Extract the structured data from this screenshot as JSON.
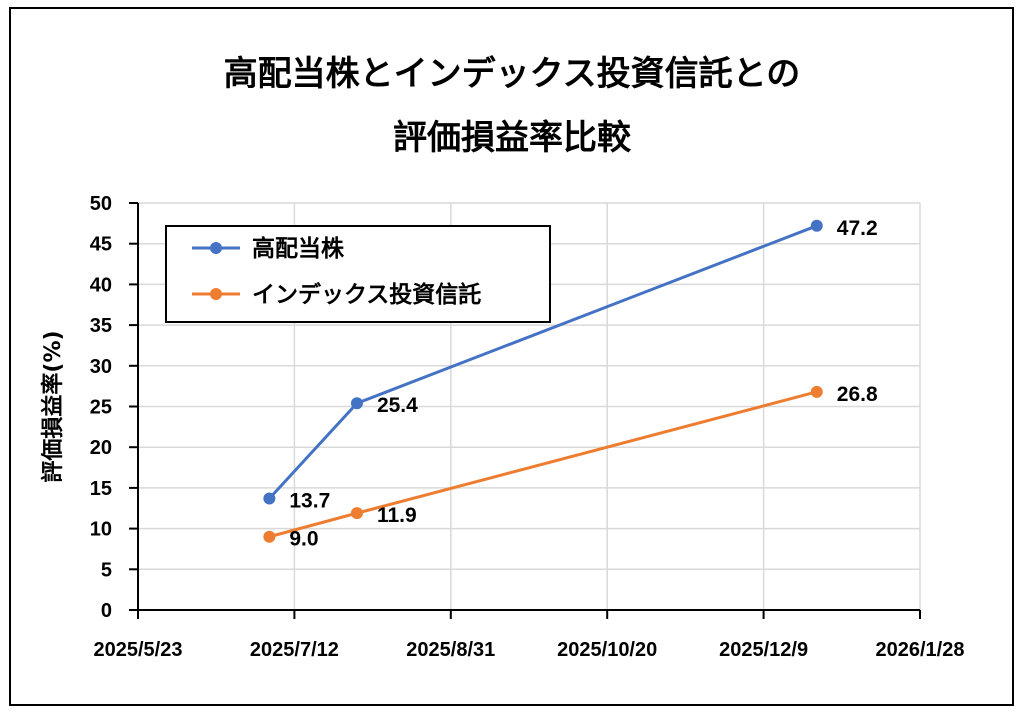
{
  "chart_data": {
    "type": "line",
    "title_lines": [
      "高配当株とインデックス投資信託との",
      "評価損益率比較"
    ],
    "ylabel": "評価損益率(%)",
    "xlabel": "",
    "ylim": [
      0,
      50
    ],
    "y_ticks": [
      "0",
      "5",
      "10",
      "15",
      "20",
      "25",
      "30",
      "35",
      "40",
      "45",
      "50"
    ],
    "xlim": [
      "2025-05-23",
      "2026-01-28"
    ],
    "x_ticks": [
      {
        "date": "2025-05-23",
        "label": "2025/5/23"
      },
      {
        "date": "2025-07-12",
        "label": "2025/7/12"
      },
      {
        "date": "2025-08-31",
        "label": "2025/8/31"
      },
      {
        "date": "2025-10-20",
        "label": "2025/10/20"
      },
      {
        "date": "2025-12-09",
        "label": "2025/12/9"
      },
      {
        "date": "2026-01-28",
        "label": "2026/1/28"
      }
    ],
    "grid": true,
    "legend_position": "top-left",
    "series": [
      {
        "name": "高配当株",
        "color": "#4472C4",
        "points": [
          {
            "x": "2025-07-04",
            "y": 13.7,
            "label": "13.7"
          },
          {
            "x": "2025-08-01",
            "y": 25.4,
            "label": "25.4"
          },
          {
            "x": "2025-12-26",
            "y": 47.2,
            "label": "47.2"
          }
        ]
      },
      {
        "name": "インデックス投資信託",
        "color": "#ED7D31",
        "points": [
          {
            "x": "2025-07-04",
            "y": 9.0,
            "label": "9.0"
          },
          {
            "x": "2025-08-01",
            "y": 11.9,
            "label": "11.9"
          },
          {
            "x": "2025-12-26",
            "y": 26.8,
            "label": "26.8"
          }
        ]
      }
    ]
  }
}
